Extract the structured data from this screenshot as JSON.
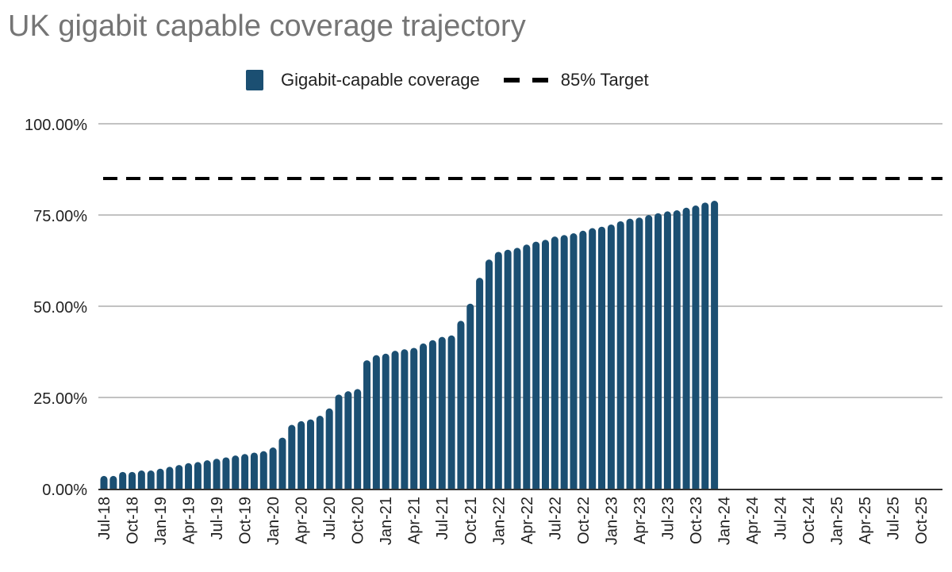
{
  "chart_data": {
    "type": "bar",
    "title": "UK gigabit capable coverage trajectory",
    "xlabel": "",
    "ylabel": "",
    "ylim": [
      0,
      100
    ],
    "yticks": [
      "0.00%",
      "25.00%",
      "50.00%",
      "75.00%",
      "100.00%"
    ],
    "ytick_values": [
      0,
      25,
      50,
      75,
      100
    ],
    "grid": true,
    "legend_position": "top-center",
    "x_months_start": "Jul-18",
    "x_months_end": "Dec-25",
    "xtick_labels": [
      "Jul-18",
      "Oct-18",
      "Jan-19",
      "Apr-19",
      "Jul-19",
      "Oct-19",
      "Jan-20",
      "Apr-20",
      "Jul-20",
      "Oct-20",
      "Jan-21",
      "Apr-21",
      "Jul-21",
      "Oct-21",
      "Jan-22",
      "Apr-22",
      "Jul-22",
      "Oct-22",
      "Jan-23",
      "Apr-23",
      "Jul-23",
      "Oct-23",
      "Jan-24",
      "Apr-24",
      "Jul-24",
      "Oct-24",
      "Jan-25",
      "Apr-25",
      "Jul-25",
      "Oct-25"
    ],
    "series": [
      {
        "name": "Gigabit-capable coverage",
        "type": "bar",
        "color": "#1b4f72",
        "values": [
          3.5,
          3.5,
          4.6,
          4.6,
          5.0,
          5.0,
          5.5,
          6.0,
          6.5,
          7.0,
          7.3,
          7.8,
          8.2,
          8.6,
          9.1,
          9.5,
          9.9,
          10.3,
          11.3,
          14.0,
          17.5,
          18.5,
          19.0,
          20.0,
          22.0,
          25.8,
          26.7,
          27.3,
          35.2,
          36.6,
          37.0,
          37.8,
          38.2,
          38.6,
          39.8,
          40.7,
          41.6,
          42.0,
          46.0,
          50.7,
          57.8,
          62.8,
          64.9,
          65.5,
          66.0,
          66.9,
          67.7,
          68.2,
          69.1,
          69.5,
          70.0,
          70.7,
          71.4,
          71.8,
          72.4,
          73.3,
          74.0,
          74.3,
          75.0,
          75.5,
          76.0,
          76.3,
          77.0,
          77.6,
          78.4,
          78.9
        ]
      },
      {
        "name": "85% Target",
        "type": "line",
        "style": "dashed",
        "color": "#000000",
        "value": 85
      }
    ]
  }
}
